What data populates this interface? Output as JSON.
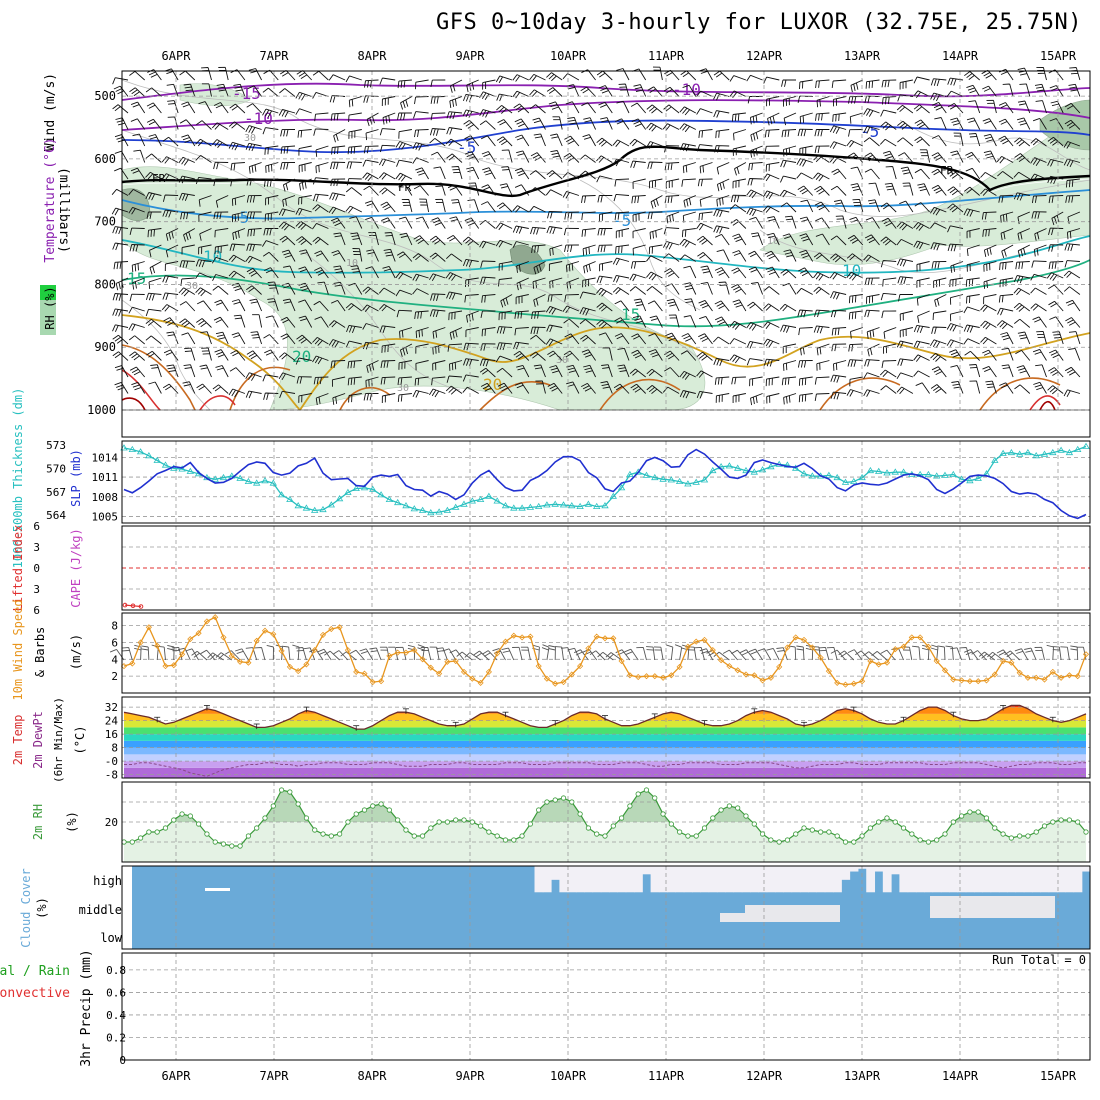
{
  "title": "GFS 0~10day 3-hourly for LUXOR (32.75E, 25.75N)",
  "colors": {
    "temp_red": "#d83030",
    "temp_orange": "#e08a20",
    "temp_yellow": "#d2a21f",
    "temp_green": "#20b080",
    "temp_teal": "#22b6c0",
    "temp_cyan": "#2a8fd8",
    "temp_blue": "#2040d0",
    "temp_purple": "#8a20b0",
    "freezing": "#000000",
    "rh_fill": "#d8ecd8",
    "rh_dark": "#a8c8a8",
    "slp": "#2030d0",
    "thickness": "#28c0c0",
    "wind_speed": "#e8961e",
    "cloud": "#6aaad8",
    "cloud_gap": "#f2f0f6",
    "rh2m": "#3a9a3a",
    "lifted_index": "#e03030",
    "cape": "#c040c0",
    "rain": "#20a020"
  },
  "chart_data": [
    {
      "panel": "upper-air",
      "type": "contour",
      "x_labels": [
        "6APR",
        "7APR",
        "8APR",
        "9APR",
        "10APR",
        "11APR",
        "12APR",
        "13APR",
        "14APR",
        "15APR"
      ],
      "ylabel": "(millibars)",
      "side_labels": [
        "Wind (m/s)",
        "Temperature (°C)",
        "RH (%)"
      ],
      "y_ticks": [
        500,
        600,
        700,
        800,
        900,
        1000
      ],
      "ylim": [
        460,
        1000
      ],
      "contour_labels": [
        "-15",
        "-10",
        "-10",
        "-5",
        "-5",
        "FR",
        "FR",
        "FR",
        "-5",
        "-5",
        "10",
        "10",
        "15",
        "15",
        "20",
        "20",
        "30",
        "30",
        "30",
        "30",
        "10",
        "10"
      ]
    },
    {
      "panel": "slp-thickness",
      "type": "line",
      "side_labels": [
        "1000-500mb Thickness (dm)",
        "SLP (mb)"
      ],
      "thickness_ticks": [
        564,
        567,
        570,
        573
      ],
      "slp_ticks": [
        1005,
        1008,
        1011,
        1014
      ],
      "thickness_ylim": [
        563,
        573.5
      ],
      "slp_ylim": [
        1004,
        1016.5
      ],
      "thickness": [
        572.6,
        572.4,
        572.1,
        571.6,
        571.0,
        570.4,
        570.0,
        569.9,
        569.6,
        569.3,
        568.8,
        568.6,
        568.8,
        569.0,
        568.7,
        568.3,
        568.1,
        568.4,
        568.1,
        566.6,
        566.0,
        565.2,
        564.9,
        564.6,
        564.7,
        565.3,
        566.1,
        566.9,
        567.4,
        567.5,
        567.3,
        566.6,
        566.0,
        565.6,
        565.2,
        564.8,
        564.6,
        564.3,
        564.4,
        564.6,
        565.0,
        565.4,
        565.8,
        566.0,
        566.4,
        565.8,
        565.2,
        564.9,
        564.9,
        565.0,
        565.1,
        565.3,
        565.4,
        565.3,
        565.2,
        565.1,
        565.4,
        565.1,
        565.2,
        566.4,
        567.5,
        569.2,
        569.5,
        569.1,
        568.8,
        568.6,
        568.5,
        568.3,
        568.0,
        568.2,
        568.5,
        569.7,
        570.2,
        570.3,
        570.0,
        569.7,
        569.5,
        569.8,
        570.2,
        570.5,
        570.4,
        570.0,
        569.3,
        569.0,
        569.0,
        569.1,
        568.8,
        568.2,
        568.3,
        568.8,
        569.7,
        569.6,
        569.4,
        569.5,
        569.5,
        569.2,
        569.2,
        569.2,
        569.0,
        569.1,
        569.2,
        568.6,
        568.4,
        568.7,
        569.3,
        571.0,
        571.9,
        572.0,
        571.8,
        572.0,
        571.6,
        571.8,
        572.0,
        572.3,
        572.0,
        572.4,
        572.8
      ],
      "slp": [
        1009.1,
        1008.6,
        1009.4,
        1010.4,
        1011.5,
        1012.0,
        1012.6,
        1012.4,
        1013.2,
        1011.7,
        1010.8,
        1010.1,
        1010.2,
        1010.8,
        1011.9,
        1012.9,
        1013.3,
        1013.1,
        1011.7,
        1011.3,
        1011.6,
        1012.7,
        1013.1,
        1013.9,
        1011.6,
        1010.6,
        1010.7,
        1010.8,
        1009.7,
        1009.6,
        1011.0,
        1011.3,
        1011.1,
        1011.4,
        1009.7,
        1009.1,
        1009.0,
        1008.1,
        1008.8,
        1008.4,
        1007.6,
        1008.3,
        1010.1,
        1011.3,
        1012.0,
        1010.6,
        1009.4,
        1008.9,
        1009.0,
        1010.5,
        1011.1,
        1012.0,
        1013.3,
        1014.1,
        1014.1,
        1013.5,
        1011.7,
        1010.9,
        1009.2,
        1008.8,
        1010.1,
        1010.4,
        1011.7,
        1013.5,
        1014.0,
        1013.5,
        1012.5,
        1012.6,
        1014.4,
        1015.2,
        1014.5,
        1013.3,
        1012.2,
        1011.0,
        1010.8,
        1011.3,
        1013.2,
        1013.6,
        1013.2,
        1012.9,
        1012.6,
        1012.5,
        1013.1,
        1012.3,
        1011.2,
        1010.7,
        1009.4,
        1008.9,
        1009.8,
        1010.1,
        1009.9,
        1009.8,
        1010.1,
        1010.7,
        1011.3,
        1011.5,
        1011.2,
        1010.6,
        1009.1,
        1008.5,
        1009.2,
        1010.1,
        1011.1,
        1011.3,
        1011.2,
        1010.8,
        1010.0,
        1008.8,
        1008.4,
        1008.6,
        1008.4,
        1007.6,
        1007.1,
        1005.9,
        1005.1,
        1004.7,
        1005.3
      ]
    },
    {
      "panel": "stability",
      "type": "line",
      "side_labels": [
        "Lifted Index",
        "CAPE (J/kg)"
      ],
      "li_ticks": [
        -6,
        -3,
        0,
        3,
        6
      ],
      "li_ylim": [
        -6,
        6
      ],
      "lifted_index": [
        5.3,
        5.4,
        5.5
      ]
    },
    {
      "panel": "wind10m",
      "type": "line",
      "side_labels": [
        "10m Wind Speed",
        "& Barbs",
        "(m/s)"
      ],
      "y_ticks": [
        2,
        4,
        6,
        8
      ],
      "ylim": [
        0,
        9.5
      ],
      "wind_speed": [
        3.2,
        3.5,
        6.0,
        7.8,
        5.6,
        3.2,
        3.3,
        4.6,
        6.4,
        7.1,
        8.5,
        9.0,
        6.6,
        4.4,
        3.7,
        3.6,
        6.2,
        7.4,
        7.0,
        5.0,
        3.1,
        2.6,
        3.4,
        5.1,
        6.9,
        7.6,
        7.8,
        5.1,
        2.5,
        2.3,
        1.3,
        1.4,
        4.4,
        4.8,
        4.8,
        5.1,
        4.0,
        3.0,
        2.3,
        3.7,
        3.8,
        2.5,
        1.7,
        1.2,
        2.5,
        4.7,
        6.1,
        6.8,
        6.6,
        6.7,
        3.2,
        1.7,
        1.1,
        1.3,
        2.2,
        3.2,
        5.3,
        6.7,
        6.5,
        6.5,
        3.8,
        2.1,
        1.9,
        2.0,
        2.0,
        1.8,
        2.1,
        3.1,
        5.5,
        6.1,
        6.3,
        5.1,
        3.9,
        3.2,
        2.7,
        2.2,
        2.1,
        1.5,
        1.8,
        3.1,
        5.4,
        6.6,
        6.3,
        5.4,
        4.2,
        2.6,
        1.2,
        1.0,
        1.1,
        1.4,
        3.8,
        3.4,
        3.6,
        5.2,
        5.5,
        6.6,
        6.6,
        5.5,
        3.8,
        2.7,
        1.6,
        1.5,
        1.4,
        1.4,
        1.5,
        2.2,
        3.8,
        3.6,
        2.4,
        1.8,
        1.8,
        1.6,
        2.5,
        1.8,
        2.1,
        2.0,
        4.6
      ]
    },
    {
      "panel": "temp2m",
      "type": "area",
      "side_labels": [
        "2m Temp",
        "2m DewPt",
        "(6hr Min/Max)",
        "(°C)"
      ],
      "y_ticks": [
        "-8",
        "-0",
        "8",
        "16",
        "24",
        "32"
      ],
      "ylim": [
        -10,
        38
      ],
      "temperature": [
        29,
        28,
        27,
        26,
        24,
        22,
        23,
        25,
        27,
        29,
        31,
        30,
        28,
        26,
        24,
        22,
        20,
        20,
        21,
        23,
        25,
        28,
        30,
        29,
        27,
        25,
        23,
        21,
        19,
        19,
        21,
        24,
        27,
        29,
        29,
        28,
        26,
        24,
        22,
        21,
        21,
        22,
        25,
        28,
        29,
        29,
        27,
        25,
        23,
        21,
        20,
        20,
        22,
        24,
        27,
        29,
        29,
        28,
        25,
        23,
        21,
        21,
        22,
        24,
        26,
        28,
        29,
        28,
        26,
        24,
        22,
        21,
        21,
        22,
        24,
        27,
        29,
        30,
        29,
        27,
        25,
        22,
        21,
        22,
        24,
        27,
        30,
        31,
        30,
        28,
        25,
        23,
        22,
        22,
        24,
        27,
        30,
        32,
        32,
        30,
        27,
        25,
        24,
        24,
        25,
        28,
        31,
        33,
        33,
        31,
        28,
        26,
        24,
        23,
        24,
        26,
        28
      ],
      "dewpoint": [
        -2,
        -2,
        -1,
        -1,
        -2,
        -3,
        -4,
        -5,
        -7,
        -8,
        -9,
        -7,
        -5,
        -4,
        -3,
        -2,
        -2,
        -1,
        -1,
        -2,
        -2,
        -3,
        -2,
        -2,
        -1,
        -1,
        -1,
        -2,
        -2,
        -2,
        -1,
        -1,
        -1,
        -2,
        -3,
        -3,
        -3,
        -2,
        -2,
        -2,
        -1,
        -1,
        -2,
        -2,
        -2,
        -2,
        -1,
        -1,
        -1,
        -2,
        -2,
        -2,
        -1,
        -1,
        -1,
        -1,
        -1,
        -2,
        -2,
        -2,
        -1,
        -1,
        -1,
        -2,
        -3,
        -3,
        -2,
        -2,
        -1,
        -1,
        -1,
        -1,
        -2,
        -2,
        -2,
        -1,
        -1,
        -1,
        -1,
        -2,
        -3,
        -4,
        -4,
        -3,
        -2,
        -2,
        -2,
        -1,
        -1,
        -2,
        -2,
        -2,
        -1,
        -1,
        -1,
        -1,
        -1,
        -2,
        -2,
        -2,
        -1,
        -1,
        -1,
        -1,
        -2,
        -3,
        -4,
        -3,
        -2,
        -2,
        -1,
        -1,
        -1,
        -2,
        -2,
        -1,
        -1
      ]
    },
    {
      "panel": "rh2m",
      "type": "area",
      "side_labels": [
        "2m RH",
        "(%)"
      ],
      "y_ticks": [
        20
      ],
      "ylim": [
        0,
        40
      ],
      "rh": [
        10,
        10,
        12,
        15,
        15,
        17,
        21,
        24,
        23,
        19,
        14,
        10,
        9,
        8,
        8,
        13,
        17,
        22,
        28,
        36,
        35,
        29,
        22,
        16,
        14,
        13,
        14,
        20,
        24,
        26,
        28,
        29,
        26,
        21,
        16,
        13,
        13,
        17,
        20,
        20,
        21,
        21,
        20,
        18,
        15,
        13,
        11,
        11,
        13,
        19,
        26,
        30,
        31,
        32,
        30,
        24,
        17,
        14,
        13,
        18,
        22,
        28,
        34,
        36,
        32,
        24,
        19,
        15,
        13,
        13,
        17,
        22,
        26,
        28,
        27,
        23,
        19,
        14,
        11,
        10,
        11,
        14,
        17,
        16,
        15,
        15,
        13,
        10,
        10,
        13,
        17,
        20,
        22,
        20,
        17,
        14,
        11,
        10,
        11,
        14,
        20,
        23,
        25,
        25,
        22,
        17,
        14,
        12,
        13,
        13,
        15,
        18,
        20,
        21,
        21,
        20,
        15
      ]
    },
    {
      "panel": "cloud-cover",
      "type": "heatmap",
      "side_labels": [
        "Cloud Cover",
        "(%)"
      ],
      "y_ticks": [
        "high",
        "middle",
        "low"
      ],
      "cells": [
        [
          0.0,
          0.0,
          0.0,
          0.0,
          0.0,
          0.0,
          0.0,
          0.0,
          0.0,
          0.0,
          0.0,
          0.0,
          0.0,
          0.0,
          0.0,
          0.0,
          0.0,
          0.0,
          0.0,
          0.0,
          0.0,
          0.0,
          0.0,
          0.0,
          0.0,
          0.0,
          0.0,
          0.0,
          0.0,
          0.0,
          0.0,
          0.0,
          0.0,
          0.0,
          0.0,
          0.0,
          0.0,
          0.0,
          0.0,
          0.0,
          0.0,
          0.0,
          0.0,
          0.0,
          0.0,
          0.0,
          0.0,
          0.0,
          0.0,
          0.0,
          0.95,
          0.95,
          0.5,
          0.95,
          0.95,
          0.95,
          0.95,
          0.95,
          0.95,
          0.95,
          0.95,
          0.95,
          0.95,
          0.3,
          0.95,
          0.95,
          0.95,
          0.95,
          0.95,
          0.95,
          0.95,
          0.95,
          0.95,
          0.95,
          0.95,
          0.95,
          0.95,
          0.95,
          0.95,
          0.95,
          0.95,
          0.95,
          0.95,
          0.95,
          0.95,
          0.95,
          0.95,
          0.5,
          0.2,
          0.1,
          0.95,
          0.2,
          0.95,
          0.3,
          0.95,
          0.95,
          0.95,
          0.95,
          0.95,
          0.95,
          0.95,
          0.95,
          0.95,
          0.95,
          0.95,
          0.95,
          0.95,
          0.95,
          0.95,
          0.95,
          0.95,
          0.95,
          0.95,
          0.95,
          0.95,
          0.95,
          0.2
        ],
        [
          0.0,
          0.0,
          0.0,
          0.0,
          0.0,
          0.0,
          0.0,
          0.0,
          0.0,
          0.0,
          0.0,
          0.0,
          0.0,
          0.0,
          0.0,
          0.0,
          0.0,
          0.0,
          0.0,
          0.0,
          0.0,
          0.0,
          0.0,
          0.0,
          0.0,
          0.0,
          0.0,
          0.0,
          0.0,
          0.0,
          0.0,
          0.0,
          0.0,
          0.0,
          0.0,
          0.0,
          0.0,
          0.0,
          0.0,
          0.0,
          0.0,
          0.0,
          0.0,
          0.0,
          0.0,
          0.0,
          0.0,
          0.0,
          0.0,
          0.0,
          0.0,
          0.0,
          0.0,
          0.0,
          0.0,
          0.0,
          0.0,
          0.0,
          0.0,
          0.0,
          0.0,
          0.0,
          0.0,
          0.0,
          0.0,
          0.0,
          0.0,
          0.0,
          0.0,
          0.0,
          0.0,
          0.0,
          0.0,
          0.0,
          0.0,
          0.0,
          0.0,
          0.0,
          0.0,
          0.0,
          0.0,
          0.0,
          0.0,
          0.0,
          0.0,
          0.0,
          0.0,
          0.0,
          0.0,
          0.0,
          0.0,
          0.0,
          0.0,
          0.0,
          0.0,
          0.0,
          0.0,
          0.0,
          0.0,
          0.0,
          0.0,
          0.0,
          0.0,
          0.0,
          0.0,
          0.0,
          0.0,
          0.0,
          0.0,
          0.0,
          0.0,
          0.0,
          0.0,
          0.0,
          0.0,
          0.0,
          0.0
        ],
        [
          0.0,
          0.0,
          0.0,
          0.0,
          0.0,
          0.0,
          0.0,
          0.0,
          0.0,
          0.0,
          0.0,
          0.0,
          0.0,
          0.0,
          0.0,
          0.0,
          0.0,
          0.0,
          0.0,
          0.0,
          0.0,
          0.0,
          0.0,
          0.0,
          0.0,
          0.0,
          0.0,
          0.0,
          0.0,
          0.0,
          0.0,
          0.0,
          0.0,
          0.0,
          0.0,
          0.0,
          0.0,
          0.0,
          0.0,
          0.0,
          0.0,
          0.0,
          0.0,
          0.0,
          0.0,
          0.0,
          0.0,
          0.0,
          0.0,
          0.0,
          0.0,
          0.0,
          0.0,
          0.0,
          0.0,
          0.0,
          0.0,
          0.0,
          0.0,
          0.0,
          0.0,
          0.0,
          0.0,
          0.0,
          0.0,
          0.0,
          0.0,
          0.0,
          0.0,
          0.0,
          0.0,
          0.0,
          0.0,
          0.0,
          0.0,
          0.0,
          0.0,
          0.0,
          0.0,
          0.0,
          0.0,
          0.0,
          0.0,
          0.0,
          0.0,
          0.0,
          0.0,
          0.0,
          0.0,
          0.0,
          0.0,
          0.0,
          0.0,
          0.0,
          0.0,
          0.0,
          0.0,
          0.0,
          0.0,
          0.0,
          0.0,
          0.0,
          0.0,
          0.0,
          0.0,
          0.0,
          0.0,
          0.0,
          0.0,
          0.0,
          0.0,
          0.0,
          0.0,
          0.0,
          0.0,
          0.0,
          0.0
        ]
      ]
    },
    {
      "panel": "precip",
      "type": "bar",
      "side_labels": [
        "Total / Rain",
        "Convective",
        "3hr Precip (mm)"
      ],
      "y_ticks": [
        "0",
        "0.2",
        "0.4",
        "0.6",
        "0.8"
      ],
      "ylim": [
        0,
        0.95
      ],
      "run_total_label": "Run Total = 0",
      "values": []
    }
  ]
}
